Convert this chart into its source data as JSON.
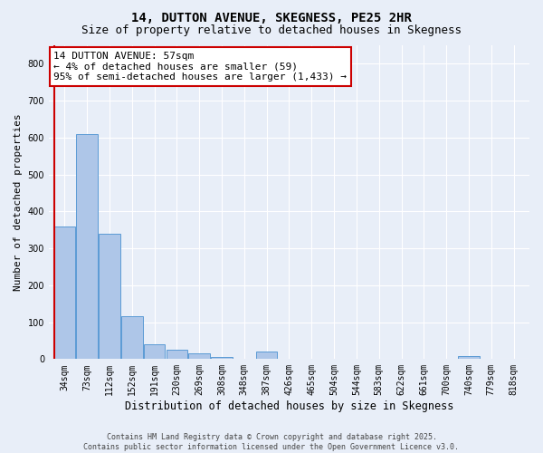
{
  "title": "14, DUTTON AVENUE, SKEGNESS, PE25 2HR",
  "subtitle": "Size of property relative to detached houses in Skegness",
  "xlabel": "Distribution of detached houses by size in Skegness",
  "ylabel": "Number of detached properties",
  "categories": [
    "34sqm",
    "73sqm",
    "112sqm",
    "152sqm",
    "191sqm",
    "230sqm",
    "269sqm",
    "308sqm",
    "348sqm",
    "387sqm",
    "426sqm",
    "465sqm",
    "504sqm",
    "544sqm",
    "583sqm",
    "622sqm",
    "661sqm",
    "700sqm",
    "740sqm",
    "779sqm",
    "818sqm"
  ],
  "values": [
    360,
    610,
    340,
    115,
    40,
    25,
    15,
    5,
    0,
    20,
    0,
    0,
    0,
    0,
    0,
    0,
    0,
    0,
    8,
    0,
    0
  ],
  "bar_color": "#aec6e8",
  "bar_edge_color": "#5b9bd5",
  "highlight_color": "#cc0000",
  "ylim": [
    0,
    850
  ],
  "yticks": [
    0,
    100,
    200,
    300,
    400,
    500,
    600,
    700,
    800
  ],
  "annotation_line1": "14 DUTTON AVENUE: 57sqm",
  "annotation_line2": "← 4% of detached houses are smaller (59)",
  "annotation_line3": "95% of semi-detached houses are larger (1,433) →",
  "annotation_box_color": "#ffffff",
  "annotation_box_edge": "#cc0000",
  "footer1": "Contains HM Land Registry data © Crown copyright and database right 2025.",
  "footer2": "Contains public sector information licensed under the Open Government Licence v3.0.",
  "bg_color": "#e8eef8",
  "grid_color": "#ffffff",
  "title_fontsize": 10,
  "subtitle_fontsize": 9,
  "ylabel_fontsize": 8,
  "xlabel_fontsize": 8.5,
  "tick_fontsize": 7,
  "annotation_fontsize": 8,
  "footer_fontsize": 6
}
